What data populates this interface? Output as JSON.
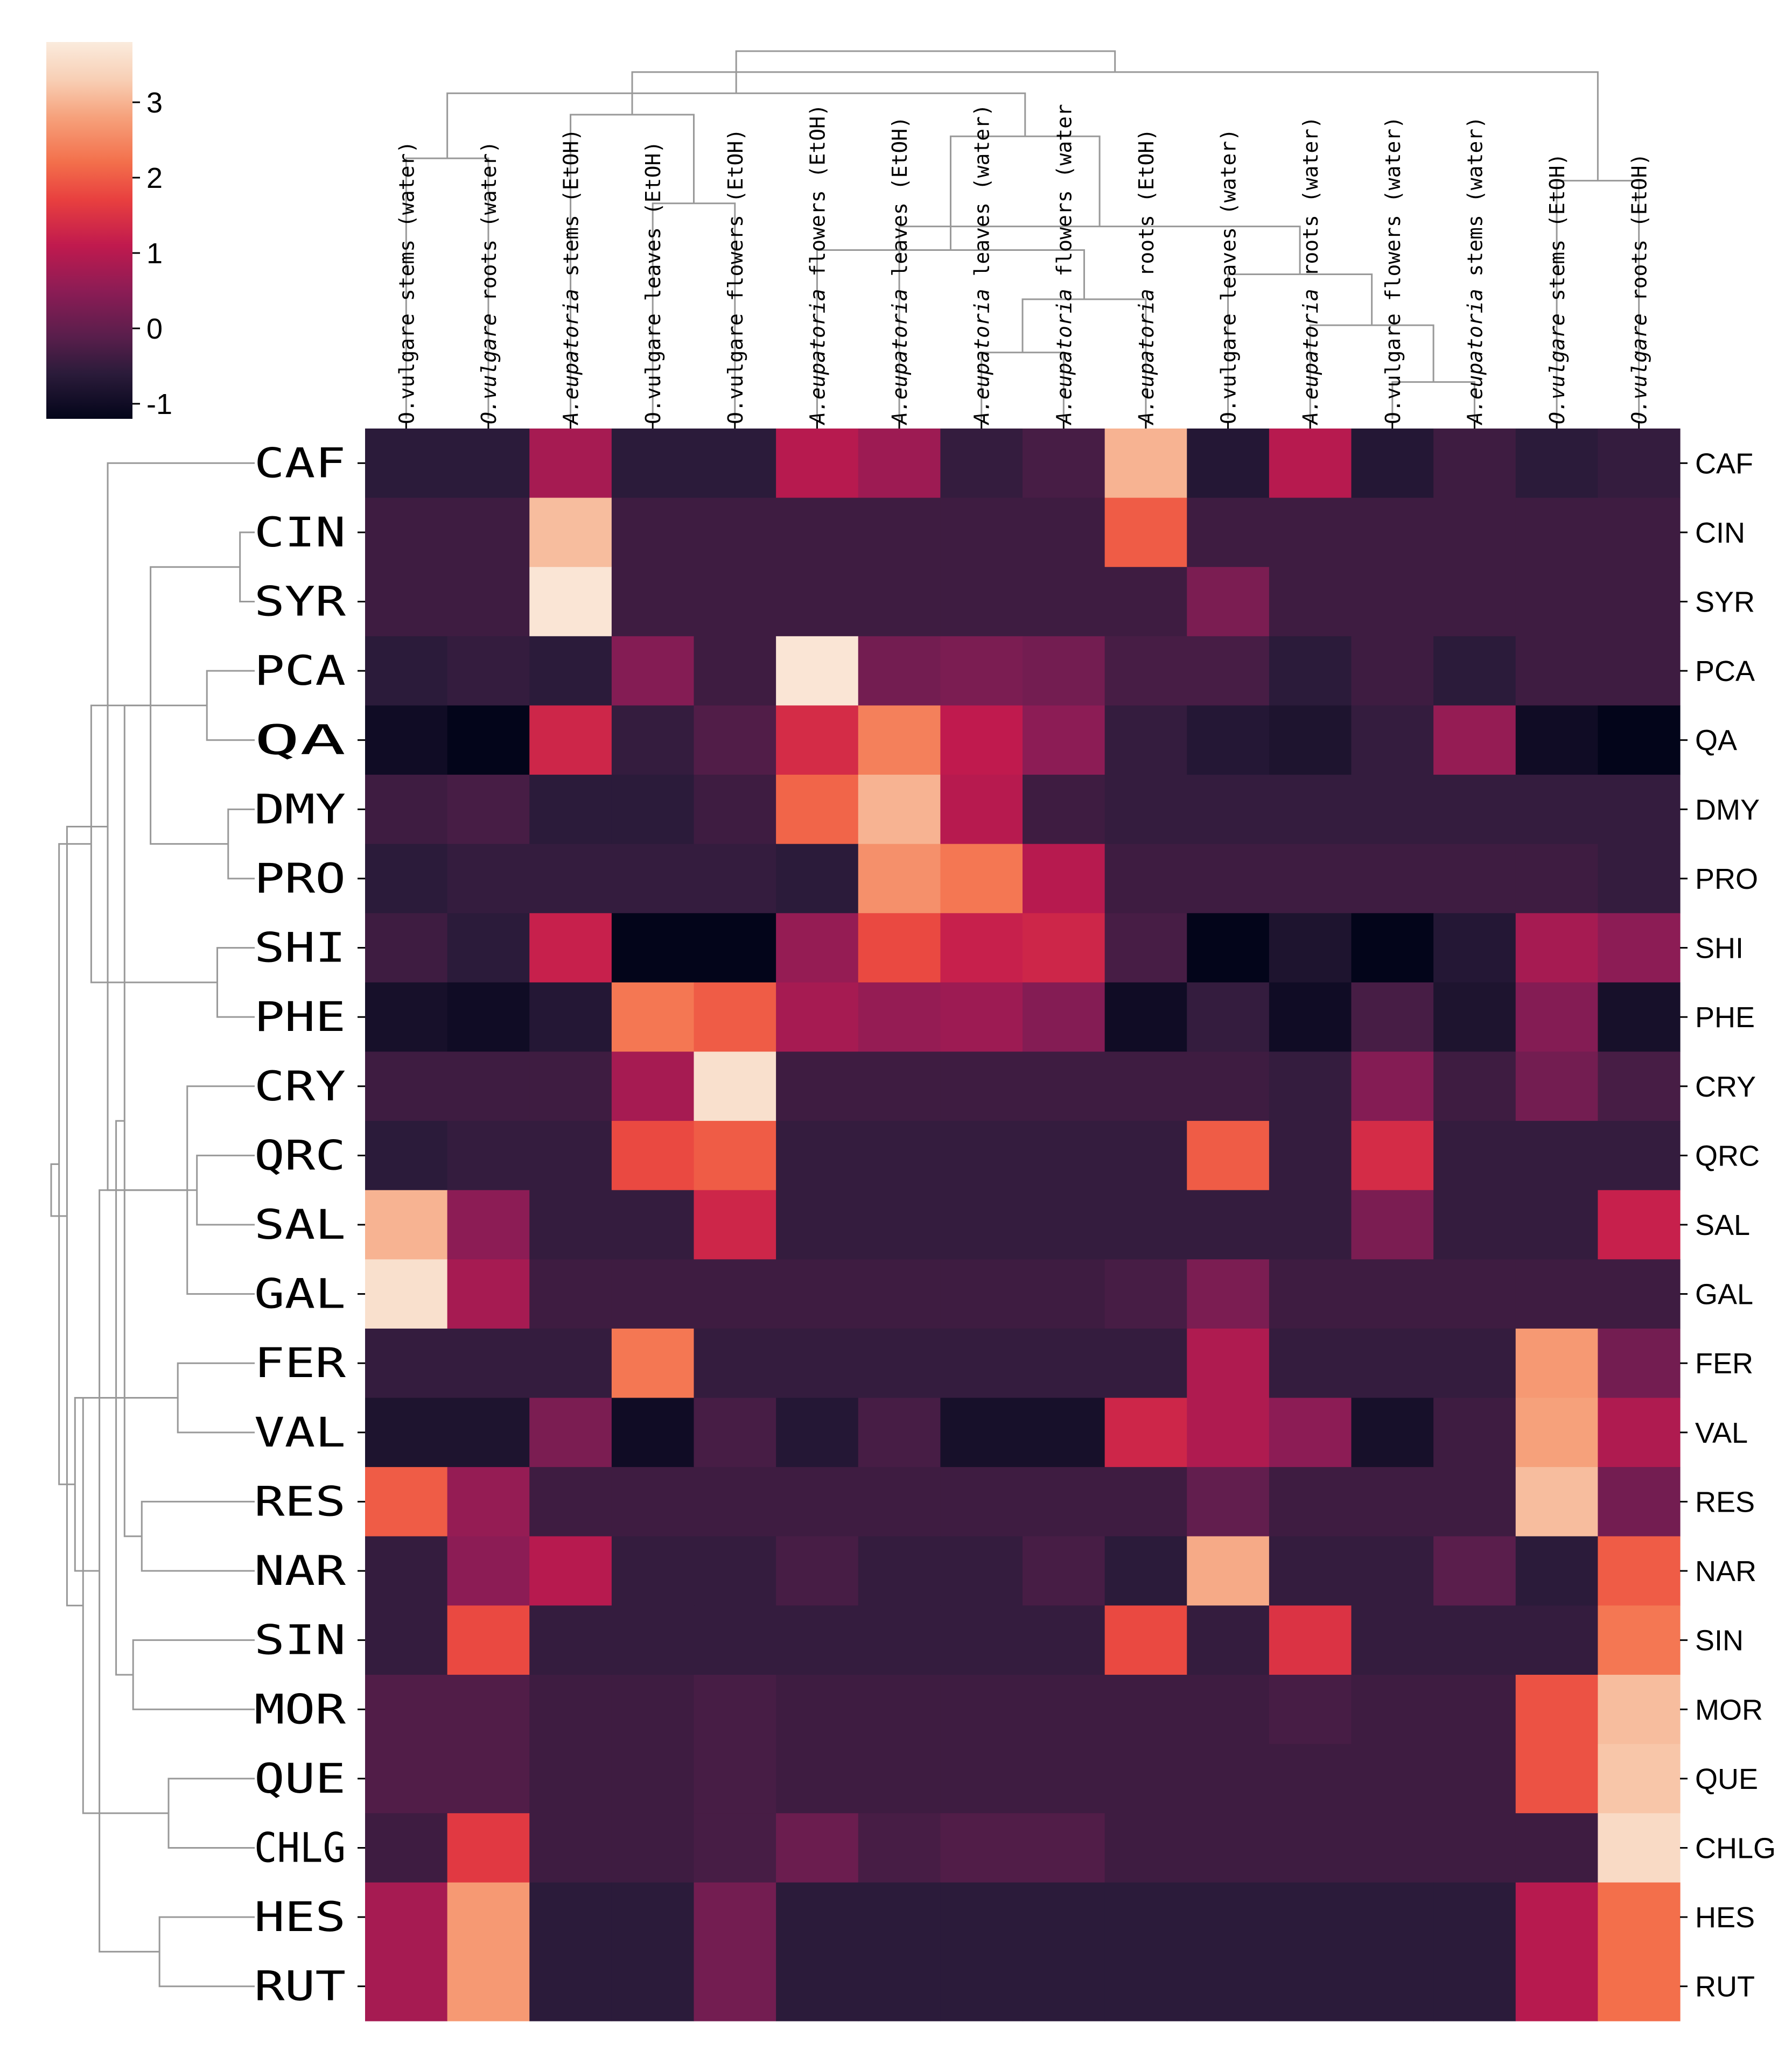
{
  "chart_data": {
    "type": "heatmap",
    "title": "",
    "columns": [
      {
        "species": "O.vulgare",
        "part": "stems",
        "solvent": "(water)",
        "italic_species": false
      },
      {
        "species": "O.vulgare",
        "part": "roots",
        "solvent": "(water)",
        "italic_species": true
      },
      {
        "species": "A.eupatoria",
        "part": "stems",
        "solvent": "(EtOH)",
        "italic_species": true
      },
      {
        "species": "O.vulgare",
        "part": "leaves",
        "solvent": "(EtOH)",
        "italic_species": false
      },
      {
        "species": "O.vulgare",
        "part": "flowers",
        "solvent": "(EtOH)",
        "italic_species": false
      },
      {
        "species": "A.eupatoria",
        "part": "flowers",
        "solvent": "(EtOH)",
        "italic_species": true
      },
      {
        "species": "A.eupatoria",
        "part": "leaves",
        "solvent": "(EtOH)",
        "italic_species": true
      },
      {
        "species": "A.eupatoria",
        "part": "leaves",
        "solvent": "(water)",
        "italic_species": true
      },
      {
        "species": "A.eupatoria",
        "part": "flowers",
        "solvent": "(water",
        "italic_species": true
      },
      {
        "species": "A.eupatoria",
        "part": "roots",
        "solvent": "(EtOH)",
        "italic_species": true
      },
      {
        "species": "O.vulgare",
        "part": "leaves",
        "solvent": "(water)",
        "italic_species": false
      },
      {
        "species": "A.eupatoria",
        "part": "roots",
        "solvent": "(water)",
        "italic_species": true
      },
      {
        "species": "O.vulgare",
        "part": "flowers",
        "solvent": "(water)",
        "italic_species": false
      },
      {
        "species": "A.eupatoria",
        "part": "stems",
        "solvent": "(water)",
        "italic_species": true
      },
      {
        "species": "O.vulgare",
        "part": "stems",
        "solvent": "(EtOH)",
        "italic_species": true
      },
      {
        "species": "O.vulgare",
        "part": "roots",
        "solvent": "(EtOH)",
        "italic_species": true
      }
    ],
    "rows": [
      "CAF",
      "CIN",
      "SYR",
      "PCA",
      "QA",
      "DMY",
      "PRO",
      "SHI",
      "PHE",
      "CRY",
      "QRC",
      "SAL",
      "GAL",
      "FER",
      "VAL",
      "RES",
      "NAR",
      "SIN",
      "MOR",
      "QUE",
      "CHLG",
      "HES",
      "RUT"
    ],
    "values": [
      [
        -0.6,
        -0.6,
        0.8,
        -0.6,
        -0.6,
        1.0,
        0.7,
        -0.5,
        -0.3,
        3.0,
        -0.7,
        1.0,
        -0.7,
        -0.4,
        -0.6,
        -0.5
      ],
      [
        -0.4,
        -0.4,
        3.1,
        -0.4,
        -0.4,
        -0.4,
        -0.4,
        -0.4,
        -0.4,
        2.0,
        -0.4,
        -0.4,
        -0.4,
        -0.4,
        -0.4,
        -0.4
      ],
      [
        -0.4,
        -0.4,
        3.7,
        -0.4,
        -0.4,
        -0.4,
        -0.4,
        -0.4,
        -0.4,
        -0.4,
        0.3,
        -0.4,
        -0.4,
        -0.4,
        -0.4,
        -0.4
      ],
      [
        -0.6,
        -0.5,
        -0.6,
        0.4,
        -0.4,
        3.7,
        0.2,
        0.3,
        0.2,
        -0.3,
        -0.3,
        -0.6,
        -0.4,
        -0.6,
        -0.4,
        -0.4
      ],
      [
        -1.0,
        -1.2,
        1.3,
        -0.5,
        -0.2,
        1.4,
        2.4,
        1.1,
        0.5,
        -0.5,
        -0.7,
        -0.8,
        -0.5,
        0.6,
        -1.0,
        -1.2
      ],
      [
        -0.4,
        -0.3,
        -0.6,
        -0.6,
        -0.4,
        2.1,
        3.0,
        1.0,
        -0.4,
        -0.5,
        -0.5,
        -0.5,
        -0.5,
        -0.5,
        -0.5,
        -0.5
      ],
      [
        -0.6,
        -0.5,
        -0.5,
        -0.5,
        -0.5,
        -0.6,
        2.6,
        2.3,
        1.0,
        -0.4,
        -0.4,
        -0.4,
        -0.4,
        -0.4,
        -0.4,
        -0.5
      ],
      [
        -0.4,
        -0.6,
        1.2,
        -1.2,
        -1.2,
        0.6,
        1.8,
        1.2,
        1.3,
        -0.3,
        -1.2,
        -0.8,
        -1.2,
        -0.7,
        0.8,
        0.5
      ],
      [
        -0.9,
        -1.0,
        -0.7,
        2.3,
        2.0,
        0.8,
        0.6,
        0.7,
        0.4,
        -1.0,
        -0.5,
        -1.0,
        -0.3,
        -0.8,
        0.4,
        -0.9
      ],
      [
        -0.4,
        -0.4,
        -0.4,
        0.8,
        3.6,
        -0.4,
        -0.4,
        -0.4,
        -0.4,
        -0.4,
        -0.4,
        -0.5,
        0.4,
        -0.4,
        0.2,
        -0.3
      ],
      [
        -0.6,
        -0.5,
        -0.5,
        1.8,
        2.0,
        -0.5,
        -0.5,
        -0.5,
        -0.5,
        -0.5,
        2.0,
        -0.5,
        1.4,
        -0.5,
        -0.5,
        -0.5
      ],
      [
        3.0,
        0.5,
        -0.5,
        -0.5,
        1.3,
        -0.5,
        -0.5,
        -0.5,
        -0.5,
        -0.5,
        -0.5,
        -0.5,
        0.3,
        -0.5,
        -0.5,
        1.2
      ],
      [
        3.6,
        0.8,
        -0.4,
        -0.4,
        -0.4,
        -0.4,
        -0.4,
        -0.4,
        -0.4,
        -0.3,
        0.3,
        -0.4,
        -0.4,
        -0.4,
        -0.4,
        -0.4
      ],
      [
        -0.5,
        -0.5,
        -0.5,
        2.3,
        -0.5,
        -0.5,
        -0.5,
        -0.5,
        -0.5,
        -0.5,
        0.9,
        -0.5,
        -0.5,
        -0.5,
        2.7,
        0.2
      ],
      [
        -0.8,
        -0.8,
        0.3,
        -1.0,
        -0.3,
        -0.7,
        -0.3,
        -0.9,
        -0.9,
        1.3,
        0.9,
        0.5,
        -0.9,
        -0.4,
        2.8,
        0.9
      ],
      [
        2.0,
        0.6,
        -0.4,
        -0.4,
        -0.4,
        -0.4,
        -0.4,
        -0.4,
        -0.4,
        -0.4,
        0.0,
        -0.4,
        -0.4,
        -0.4,
        3.1,
        0.2
      ],
      [
        -0.5,
        0.5,
        1.0,
        -0.5,
        -0.5,
        -0.3,
        -0.5,
        -0.5,
        -0.3,
        -0.6,
        2.9,
        -0.5,
        -0.5,
        -0.1,
        -0.6,
        2.0
      ],
      [
        -0.5,
        1.8,
        -0.5,
        -0.5,
        -0.5,
        -0.5,
        -0.5,
        -0.5,
        -0.5,
        1.8,
        -0.5,
        1.5,
        -0.5,
        -0.5,
        -0.5,
        2.3
      ],
      [
        -0.2,
        -0.2,
        -0.4,
        -0.4,
        -0.3,
        -0.4,
        -0.4,
        -0.4,
        -0.4,
        -0.4,
        -0.4,
        -0.3,
        -0.4,
        -0.4,
        1.9,
        3.1
      ],
      [
        -0.2,
        -0.2,
        -0.4,
        -0.4,
        -0.3,
        -0.4,
        -0.4,
        -0.4,
        -0.4,
        -0.4,
        -0.4,
        -0.4,
        -0.4,
        -0.4,
        1.9,
        3.2
      ],
      [
        -0.4,
        1.6,
        -0.4,
        -0.4,
        -0.3,
        0.1,
        -0.3,
        -0.2,
        -0.2,
        -0.4,
        -0.4,
        -0.4,
        -0.4,
        -0.4,
        -0.4,
        3.5
      ],
      [
        0.8,
        2.7,
        -0.6,
        -0.6,
        0.2,
        -0.6,
        -0.6,
        -0.6,
        -0.6,
        -0.6,
        -0.6,
        -0.6,
        -0.6,
        -0.6,
        1.0,
        2.2
      ],
      [
        0.8,
        2.7,
        -0.6,
        -0.6,
        0.2,
        -0.6,
        -0.6,
        -0.6,
        -0.6,
        -0.6,
        -0.6,
        -0.6,
        -0.6,
        -0.6,
        1.0,
        2.2
      ]
    ],
    "vmin": -1.2,
    "vmax": 3.8,
    "colorbar": {
      "ticks": [
        -1,
        0,
        1,
        2,
        3
      ],
      "tick_labels": [
        "-1",
        "0",
        "1",
        "2",
        "3"
      ]
    },
    "colormap_stops": [
      "#03051a",
      "#2b1b3a",
      "#5a1e4c",
      "#8c1c55",
      "#c01a4e",
      "#e83f3f",
      "#f36f4b",
      "#f6a17b",
      "#f8cfb5",
      "#faebdd"
    ],
    "colormap_positions": [
      0.0,
      0.12,
      0.22,
      0.34,
      0.46,
      0.58,
      0.68,
      0.8,
      0.9,
      1.0
    ],
    "row_dendrogram": [
      [
        1,
        2
      ],
      [
        5,
        6
      ],
      [
        7,
        8
      ],
      [
        3,
        4
      ],
      [
        10,
        11
      ],
      [
        9,
        12
      ],
      [
        13,
        14
      ],
      [
        19,
        20
      ],
      [
        21,
        22
      ],
      [
        23,
        24
      ],
      [
        15,
        16
      ],
      [
        17,
        18
      ],
      [
        32,
        33
      ],
      [
        34,
        35
      ],
      [
        0,
        27
      ],
      [
        28,
        31
      ],
      [
        25,
        26
      ],
      [
        29,
        30
      ],
      [
        36,
        38
      ],
      [
        37,
        40
      ],
      [
        39,
        41
      ],
      [
        42,
        43
      ]
    ],
    "col_dendrogram": [
      [
        12,
        13
      ],
      [
        8,
        7
      ],
      [
        11,
        16
      ],
      [
        9,
        17
      ],
      [
        10,
        18
      ],
      [
        5,
        19
      ],
      [
        6,
        20
      ],
      [
        3,
        4
      ],
      [
        14,
        15
      ],
      [
        0,
        1
      ],
      [
        21,
        22
      ],
      [
        2,
        23
      ],
      [
        25,
        26
      ],
      [
        24,
        27
      ],
      [
        28,
        29
      ]
    ],
    "dendrogram_color": "#999999"
  }
}
